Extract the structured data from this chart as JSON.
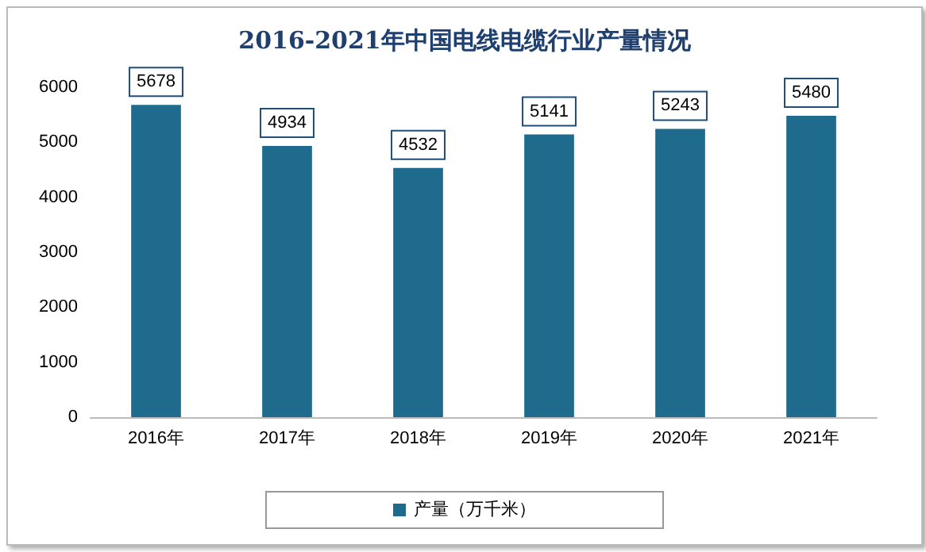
{
  "chart_data": {
    "type": "bar",
    "title": "2016-2021年中国电线电缆行业产量情况",
    "categories": [
      "2016年",
      "2017年",
      "2018年",
      "2019年",
      "2020年",
      "2021年"
    ],
    "series": [
      {
        "name": "产量（万千米）",
        "color": "#1f6b8e",
        "values": [
          5678,
          4934,
          4532,
          5141,
          5243,
          5480
        ]
      }
    ],
    "ylim": [
      0,
      6000
    ],
    "yticks": [
      0,
      1000,
      2000,
      3000,
      4000,
      5000,
      6000
    ],
    "grid": false,
    "legend": "bottom",
    "data_labels": true
  }
}
